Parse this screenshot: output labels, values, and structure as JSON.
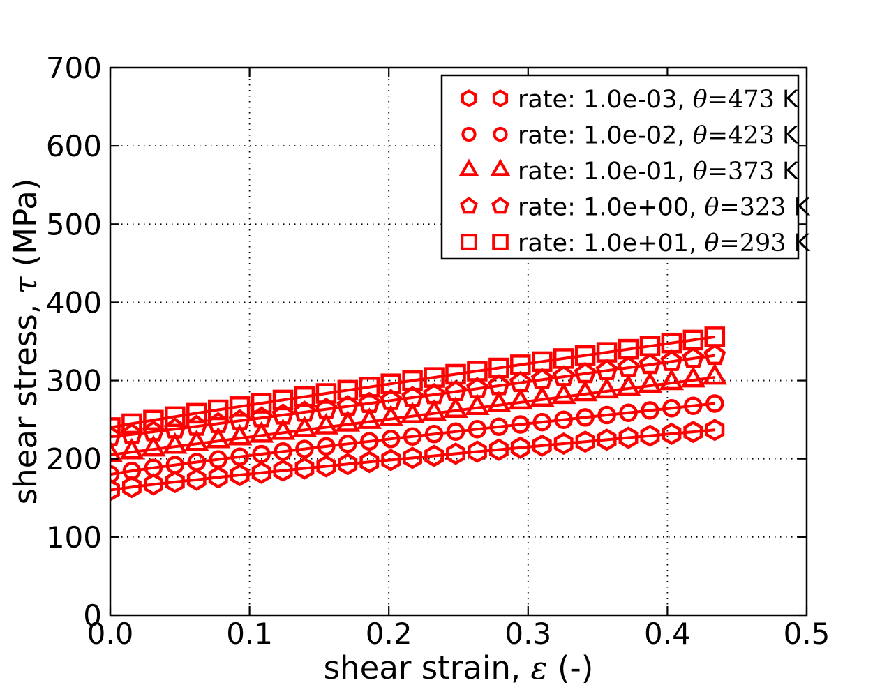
{
  "figure": {
    "background": "#ffffff",
    "accent_color": "#ff0000",
    "grid_color": "#000000",
    "axis_color": "#000000"
  },
  "chart_data": {
    "type": "line",
    "title": "",
    "xlabel": {
      "pre": "shear strain, ",
      "sym": "ε",
      "post": " (-)"
    },
    "ylabel": {
      "pre": "shear stress, ",
      "sym": "τ",
      "post": " (MPa)"
    },
    "xlim": [
      0.0,
      0.5
    ],
    "ylim": [
      0,
      700
    ],
    "grid": "dotted",
    "legend_position": "upper right",
    "xticks": {
      "values": [
        0.0,
        0.1,
        0.2,
        0.3,
        0.4,
        0.5
      ],
      "labels": [
        "0.0",
        "0.1",
        "0.2",
        "0.3",
        "0.4",
        "0.5"
      ]
    },
    "yticks": {
      "values": [
        0,
        100,
        200,
        300,
        400,
        500,
        600,
        700
      ],
      "labels": [
        "0",
        "100",
        "200",
        "300",
        "400",
        "500",
        "600",
        "700"
      ]
    },
    "x": [
      0,
      0.0155,
      0.031,
      0.0465,
      0.062,
      0.0775,
      0.093,
      0.1085,
      0.124,
      0.1395,
      0.155,
      0.1705,
      0.186,
      0.2015,
      0.217,
      0.2325,
      0.248,
      0.2635,
      0.279,
      0.2945,
      0.31,
      0.3255,
      0.341,
      0.3565,
      0.372,
      0.3875,
      0.403,
      0.4185,
      0.434
    ],
    "series": [
      {
        "marker": "hexagon",
        "color": "#ff0000",
        "label": {
          "rate": "rate: 1.0e-03, ",
          "theta_sym": "θ",
          "theta_eq": "=473",
          "unit": " K"
        },
        "y": [
          160,
          163.8,
          167.2,
          170.3,
          173.3,
          176.3,
          179.2,
          182.1,
          184.9,
          187.7,
          190.4,
          193.2,
          195.9,
          198.5,
          201.2,
          203.8,
          206.5,
          209.1,
          211.7,
          214.2,
          216.8,
          219.4,
          221.9,
          224.4,
          226.9,
          229.4,
          231.9,
          234.4,
          236.9
        ]
      },
      {
        "marker": "circle",
        "color": "#ff0000",
        "label": {
          "rate": "rate: 1.0e-02, ",
          "theta_sym": "θ",
          "theta_eq": "=423",
          "unit": " K"
        },
        "y": [
          180,
          184.5,
          188.4,
          192.1,
          195.7,
          199.2,
          202.6,
          206,
          209.3,
          212.6,
          215.9,
          219.1,
          222.2,
          225.4,
          228.5,
          231.6,
          234.7,
          237.8,
          240.9,
          243.9,
          246.9,
          249.9,
          252.9,
          255.9,
          258.8,
          261.8,
          264.7,
          267.7,
          270.6
        ]
      },
      {
        "marker": "triangle",
        "color": "#ff0000",
        "label": {
          "rate": "rate: 1.0e-01, ",
          "theta_sym": "θ",
          "theta_eq": "=373",
          "unit": " K"
        },
        "y": [
          205,
          208.5,
          212.1,
          215.6,
          219.1,
          222.7,
          226.2,
          229.7,
          233.3,
          236.8,
          240.3,
          243.9,
          247.4,
          250.9,
          254.5,
          258,
          261.5,
          265.1,
          268.6,
          272.1,
          275.7,
          279.2,
          282.7,
          286.3,
          289.8,
          293.4,
          296.9,
          300.4,
          304
        ]
      },
      {
        "marker": "pentagon",
        "color": "#ff0000",
        "label": {
          "rate": "rate: 1.0e+00, ",
          "theta_sym": "θ",
          "theta_eq": "=323",
          "unit": " K"
        },
        "y": [
          228,
          231.1,
          234.5,
          238,
          241.5,
          245,
          248.6,
          252.3,
          255.9,
          259.6,
          263.3,
          267,
          270.7,
          274.5,
          278.3,
          282,
          285.8,
          289.6,
          293.4,
          297.3,
          301.1,
          304.9,
          308.8,
          312.6,
          316.5,
          320.4,
          324.3,
          328.2,
          332.1
        ]
      },
      {
        "marker": "square",
        "color": "#ff0000",
        "label": {
          "rate": "rate: 1.0e+01, ",
          "theta_sym": "θ",
          "theta_eq": "=293",
          "unit": " K"
        },
        "y": [
          240,
          244.9,
          249.4,
          253.9,
          258.2,
          262.6,
          266.8,
          271,
          275.2,
          279.4,
          283.6,
          287.7,
          291.8,
          295.9,
          300,
          304,
          308.1,
          312.1,
          316.1,
          320.2,
          324.2,
          328.2,
          332.1,
          336.1,
          340.1,
          344,
          348,
          351.9,
          355.9
        ]
      }
    ]
  }
}
